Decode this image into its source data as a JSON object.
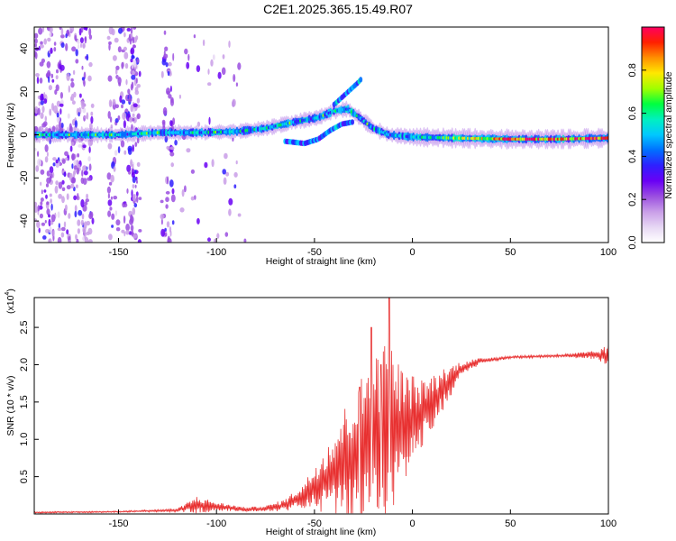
{
  "figure_title": "C2E1.2025.365.15.49.R07",
  "chart_data": [
    {
      "type": "heatmap",
      "name": "spectrogram",
      "xlabel": "Height of straight line (km)",
      "ylabel": "Frequency (Hz)",
      "xlim": [
        -193,
        100
      ],
      "ylim": [
        -50,
        50
      ],
      "xticks": [
        "-150",
        "-100",
        "-50",
        "0",
        "50",
        "100"
      ],
      "yticks": [
        "-40",
        "-20",
        "0",
        "20",
        "40"
      ],
      "colorbar": {
        "label": "Normalized spectral amplitude",
        "range": [
          0.0,
          1.0
        ],
        "ticks": [
          "0.0",
          "0.2",
          "0.4",
          "0.6",
          "0.8"
        ],
        "colors": [
          "#ffffff",
          "#e7d8f4",
          "#c99ee8",
          "#9b4fe0",
          "#6a00f5",
          "#2f1fff",
          "#0070ff",
          "#00c8ff",
          "#00f0c0",
          "#00ff40",
          "#a0ff00",
          "#ffe800",
          "#ff9000",
          "#ff2000",
          "#ff0060"
        ]
      },
      "ridge_center_hz": [
        [
          -190,
          0
        ],
        [
          -170,
          0
        ],
        [
          -150,
          0
        ],
        [
          -130,
          1
        ],
        [
          -110,
          1
        ],
        [
          -90,
          1.5
        ],
        [
          -75,
          3
        ],
        [
          -60,
          6
        ],
        [
          -48,
          8
        ],
        [
          -40,
          11
        ],
        [
          -33,
          12
        ],
        [
          -27,
          8
        ],
        [
          -20,
          3
        ],
        [
          -12,
          0
        ],
        [
          0,
          -1
        ],
        [
          20,
          -1.5
        ],
        [
          50,
          -2
        ],
        [
          75,
          -2
        ],
        [
          100,
          -1.5
        ]
      ],
      "secondary_branch_hz": [
        [
          -65,
          -3
        ],
        [
          -55,
          -4
        ],
        [
          -48,
          -2
        ],
        [
          -42,
          2
        ],
        [
          -36,
          5
        ],
        [
          -30,
          6
        ]
      ],
      "branch_above_hz": [
        [
          -40,
          14
        ],
        [
          -34,
          19
        ],
        [
          -28,
          24
        ],
        [
          -26,
          26
        ]
      ]
    },
    {
      "type": "line",
      "name": "snr",
      "xlabel": "Height of straight line (km)",
      "ylabel": "SNR (10 * v/v)",
      "multiplier": "(x10",
      "multiplier_exp": "4",
      "xlim": [
        -193,
        100
      ],
      "ylim": [
        0,
        2.9
      ],
      "xticks": [
        "-150",
        "-100",
        "-50",
        "0",
        "50",
        "100"
      ],
      "yticks": [
        "0.5",
        "1.0",
        "1.5",
        "2.0",
        "2.5"
      ],
      "color": "#e83030",
      "envelope": {
        "x": [
          -193,
          -150,
          -120,
          -110,
          -100,
          -85,
          -75,
          -65,
          -55,
          -45,
          -40,
          -30,
          -22,
          -12,
          -5,
          5,
          15,
          25,
          35,
          50,
          75,
          95,
          100
        ],
        "y": [
          0.02,
          0.03,
          0.05,
          0.12,
          0.1,
          0.06,
          0.07,
          0.12,
          0.25,
          0.45,
          0.55,
          0.75,
          0.95,
          1.05,
          1.15,
          1.35,
          1.65,
          1.95,
          2.05,
          2.1,
          2.12,
          2.13,
          2.1
        ],
        "amp": [
          0.01,
          0.01,
          0.02,
          0.12,
          0.06,
          0.03,
          0.04,
          0.08,
          0.18,
          0.45,
          0.6,
          0.95,
          1.2,
          1.3,
          0.8,
          0.45,
          0.3,
          0.1,
          0.04,
          0.02,
          0.02,
          0.06,
          0.18
        ]
      },
      "peaks": [
        [
          -21,
          2.5
        ],
        [
          -12,
          2.9
        ],
        [
          -16,
          2.0
        ],
        [
          -27,
          1.7
        ]
      ]
    }
  ]
}
